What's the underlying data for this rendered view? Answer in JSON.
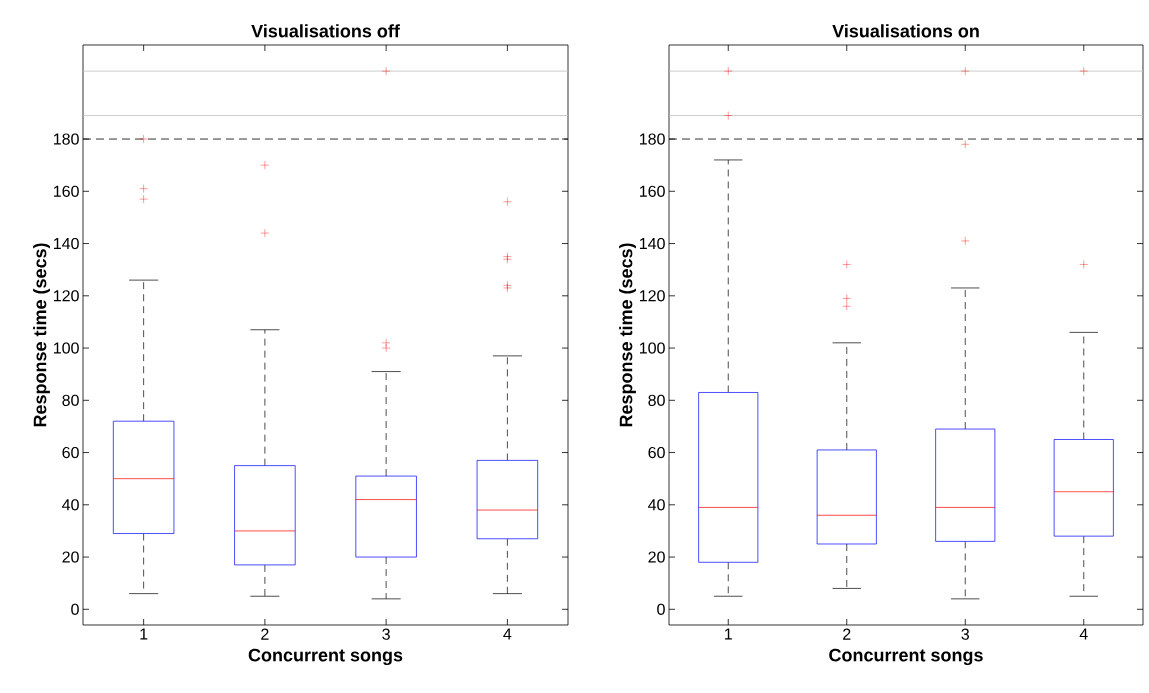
{
  "chart_data": [
    {
      "type": "box",
      "title": "Visualisations off",
      "xlabel": "Concurrent songs",
      "ylabel": "Response time (secs)",
      "categories": [
        "1",
        "2",
        "3",
        "4"
      ],
      "color": "#0000ff",
      "ylim": [
        -6,
        216
      ],
      "yticks": [
        0,
        20,
        40,
        60,
        80,
        100,
        120,
        140,
        160,
        180
      ],
      "boxes": [
        {
          "low": 6,
          "q1": 29,
          "median": 50,
          "q3": 72,
          "high": 126,
          "outliers": [
            180,
            161,
            157
          ]
        },
        {
          "low": 5,
          "q1": 17,
          "median": 30,
          "q3": 55,
          "high": 107,
          "outliers": [
            170,
            144
          ]
        },
        {
          "low": 4,
          "q1": 20,
          "median": 42,
          "q3": 51,
          "high": 91,
          "outliers": [
            102,
            100,
            206
          ]
        },
        {
          "low": 6,
          "q1": 27,
          "median": 38,
          "q3": 57,
          "high": 97,
          "outliers": [
            156,
            135,
            134,
            124,
            123
          ]
        }
      ],
      "ref_lines": [
        {
          "axis": "y",
          "value": 180,
          "color": "#000000",
          "line_style": "dashed"
        },
        {
          "axis": "y",
          "value": 189,
          "color": "#c0c0c0",
          "line_style": "solid"
        },
        {
          "axis": "y",
          "value": 206,
          "color": "#c0c0c0",
          "line_style": "solid"
        }
      ]
    },
    {
      "type": "box",
      "title": "Visualisations on",
      "xlabel": "Concurrent songs",
      "ylabel": "Response time (secs)",
      "categories": [
        "1",
        "2",
        "3",
        "4"
      ],
      "color": "#0000ff",
      "ylim": [
        -6,
        216
      ],
      "yticks": [
        0,
        20,
        40,
        60,
        80,
        100,
        120,
        140,
        160,
        180
      ],
      "boxes": [
        {
          "low": 5,
          "q1": 18,
          "median": 39,
          "q3": 83,
          "high": 172,
          "outliers": [
            206,
            189
          ]
        },
        {
          "low": 8,
          "q1": 25,
          "median": 36,
          "q3": 61,
          "high": 102,
          "outliers": [
            132,
            119,
            116
          ]
        },
        {
          "low": 4,
          "q1": 26,
          "median": 39,
          "q3": 69,
          "high": 123,
          "outliers": [
            206,
            178,
            141
          ]
        },
        {
          "low": 5,
          "q1": 28,
          "median": 45,
          "q3": 65,
          "high": 106,
          "outliers": [
            206,
            132
          ]
        }
      ],
      "ref_lines": [
        {
          "axis": "y",
          "value": 180,
          "color": "#000000",
          "line_style": "dashed"
        },
        {
          "axis": "y",
          "value": 189,
          "color": "#c0c0c0",
          "line_style": "solid"
        },
        {
          "axis": "y",
          "value": 206,
          "color": "#c0c0c0",
          "line_style": "solid"
        }
      ]
    }
  ]
}
